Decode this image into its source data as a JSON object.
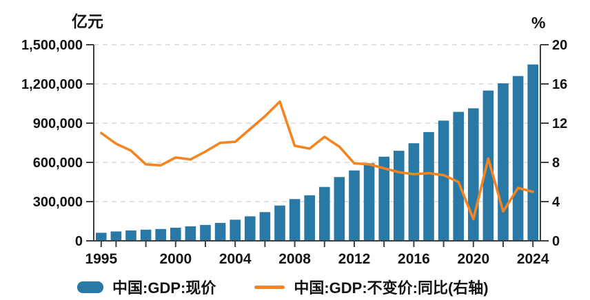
{
  "colors": {
    "bar": "#2879A6",
    "line": "#F5831F",
    "grid": "#D9D9D9",
    "axis": "#3F3F3F",
    "text": "#141414",
    "background": "#FFFFFF"
  },
  "chart_data": {
    "type": "combo",
    "title": "",
    "x": [
      1995,
      1996,
      1997,
      1998,
      1999,
      2000,
      2001,
      2002,
      2003,
      2004,
      2005,
      2006,
      2007,
      2008,
      2009,
      2010,
      2011,
      2012,
      2013,
      2014,
      2015,
      2016,
      2017,
      2018,
      2019,
      2020,
      2021,
      2022,
      2023,
      2024
    ],
    "x_label_years": [
      1995,
      2000,
      2004,
      2008,
      2012,
      2016,
      2020,
      2024
    ],
    "x_tick_rule": "year 1995 plus every even year",
    "series": [
      {
        "name": "中国:GDP:现价",
        "type": "bar",
        "axis": "left",
        "color": "#2879A6",
        "values": [
          61340,
          71814,
          79715,
          85196,
          90564,
          100280,
          110863,
          121717,
          137422,
          161840,
          187319,
          219439,
          270092,
          319245,
          348518,
          412119,
          487940,
          538580,
          592963,
          643563,
          688858,
          746395,
          832036,
          919281,
          986515,
          1013567,
          1149237,
          1204724,
          1260582,
          1349084
        ]
      },
      {
        "name": "中国:GDP:不变价:同比(右轴)",
        "type": "line",
        "axis": "right",
        "color": "#F5831F",
        "values": [
          11.0,
          9.9,
          9.2,
          7.8,
          7.7,
          8.5,
          8.3,
          9.1,
          10.0,
          10.1,
          11.4,
          12.7,
          14.2,
          9.7,
          9.4,
          10.6,
          9.6,
          7.9,
          7.8,
          7.4,
          7.0,
          6.8,
          6.9,
          6.7,
          6.0,
          2.2,
          8.4,
          3.0,
          5.4,
          5.0
        ]
      }
    ],
    "left_axis": {
      "title": "亿元",
      "min": 0,
      "max": 1500000,
      "ticks": [
        0,
        300000,
        600000,
        900000,
        1200000,
        1500000
      ],
      "tick_labels": [
        "0",
        "300,000",
        "600,000",
        "900,000",
        "1,200,000",
        "1,500,000"
      ]
    },
    "right_axis": {
      "title": "%",
      "min": 0,
      "max": 20,
      "ticks": [
        0,
        4,
        8,
        12,
        16,
        20
      ],
      "tick_labels": [
        "0",
        "4",
        "8",
        "12",
        "16",
        "20"
      ]
    },
    "grid": "horizontal dashed at left-axis major ticks",
    "legend_position": "bottom-left"
  }
}
